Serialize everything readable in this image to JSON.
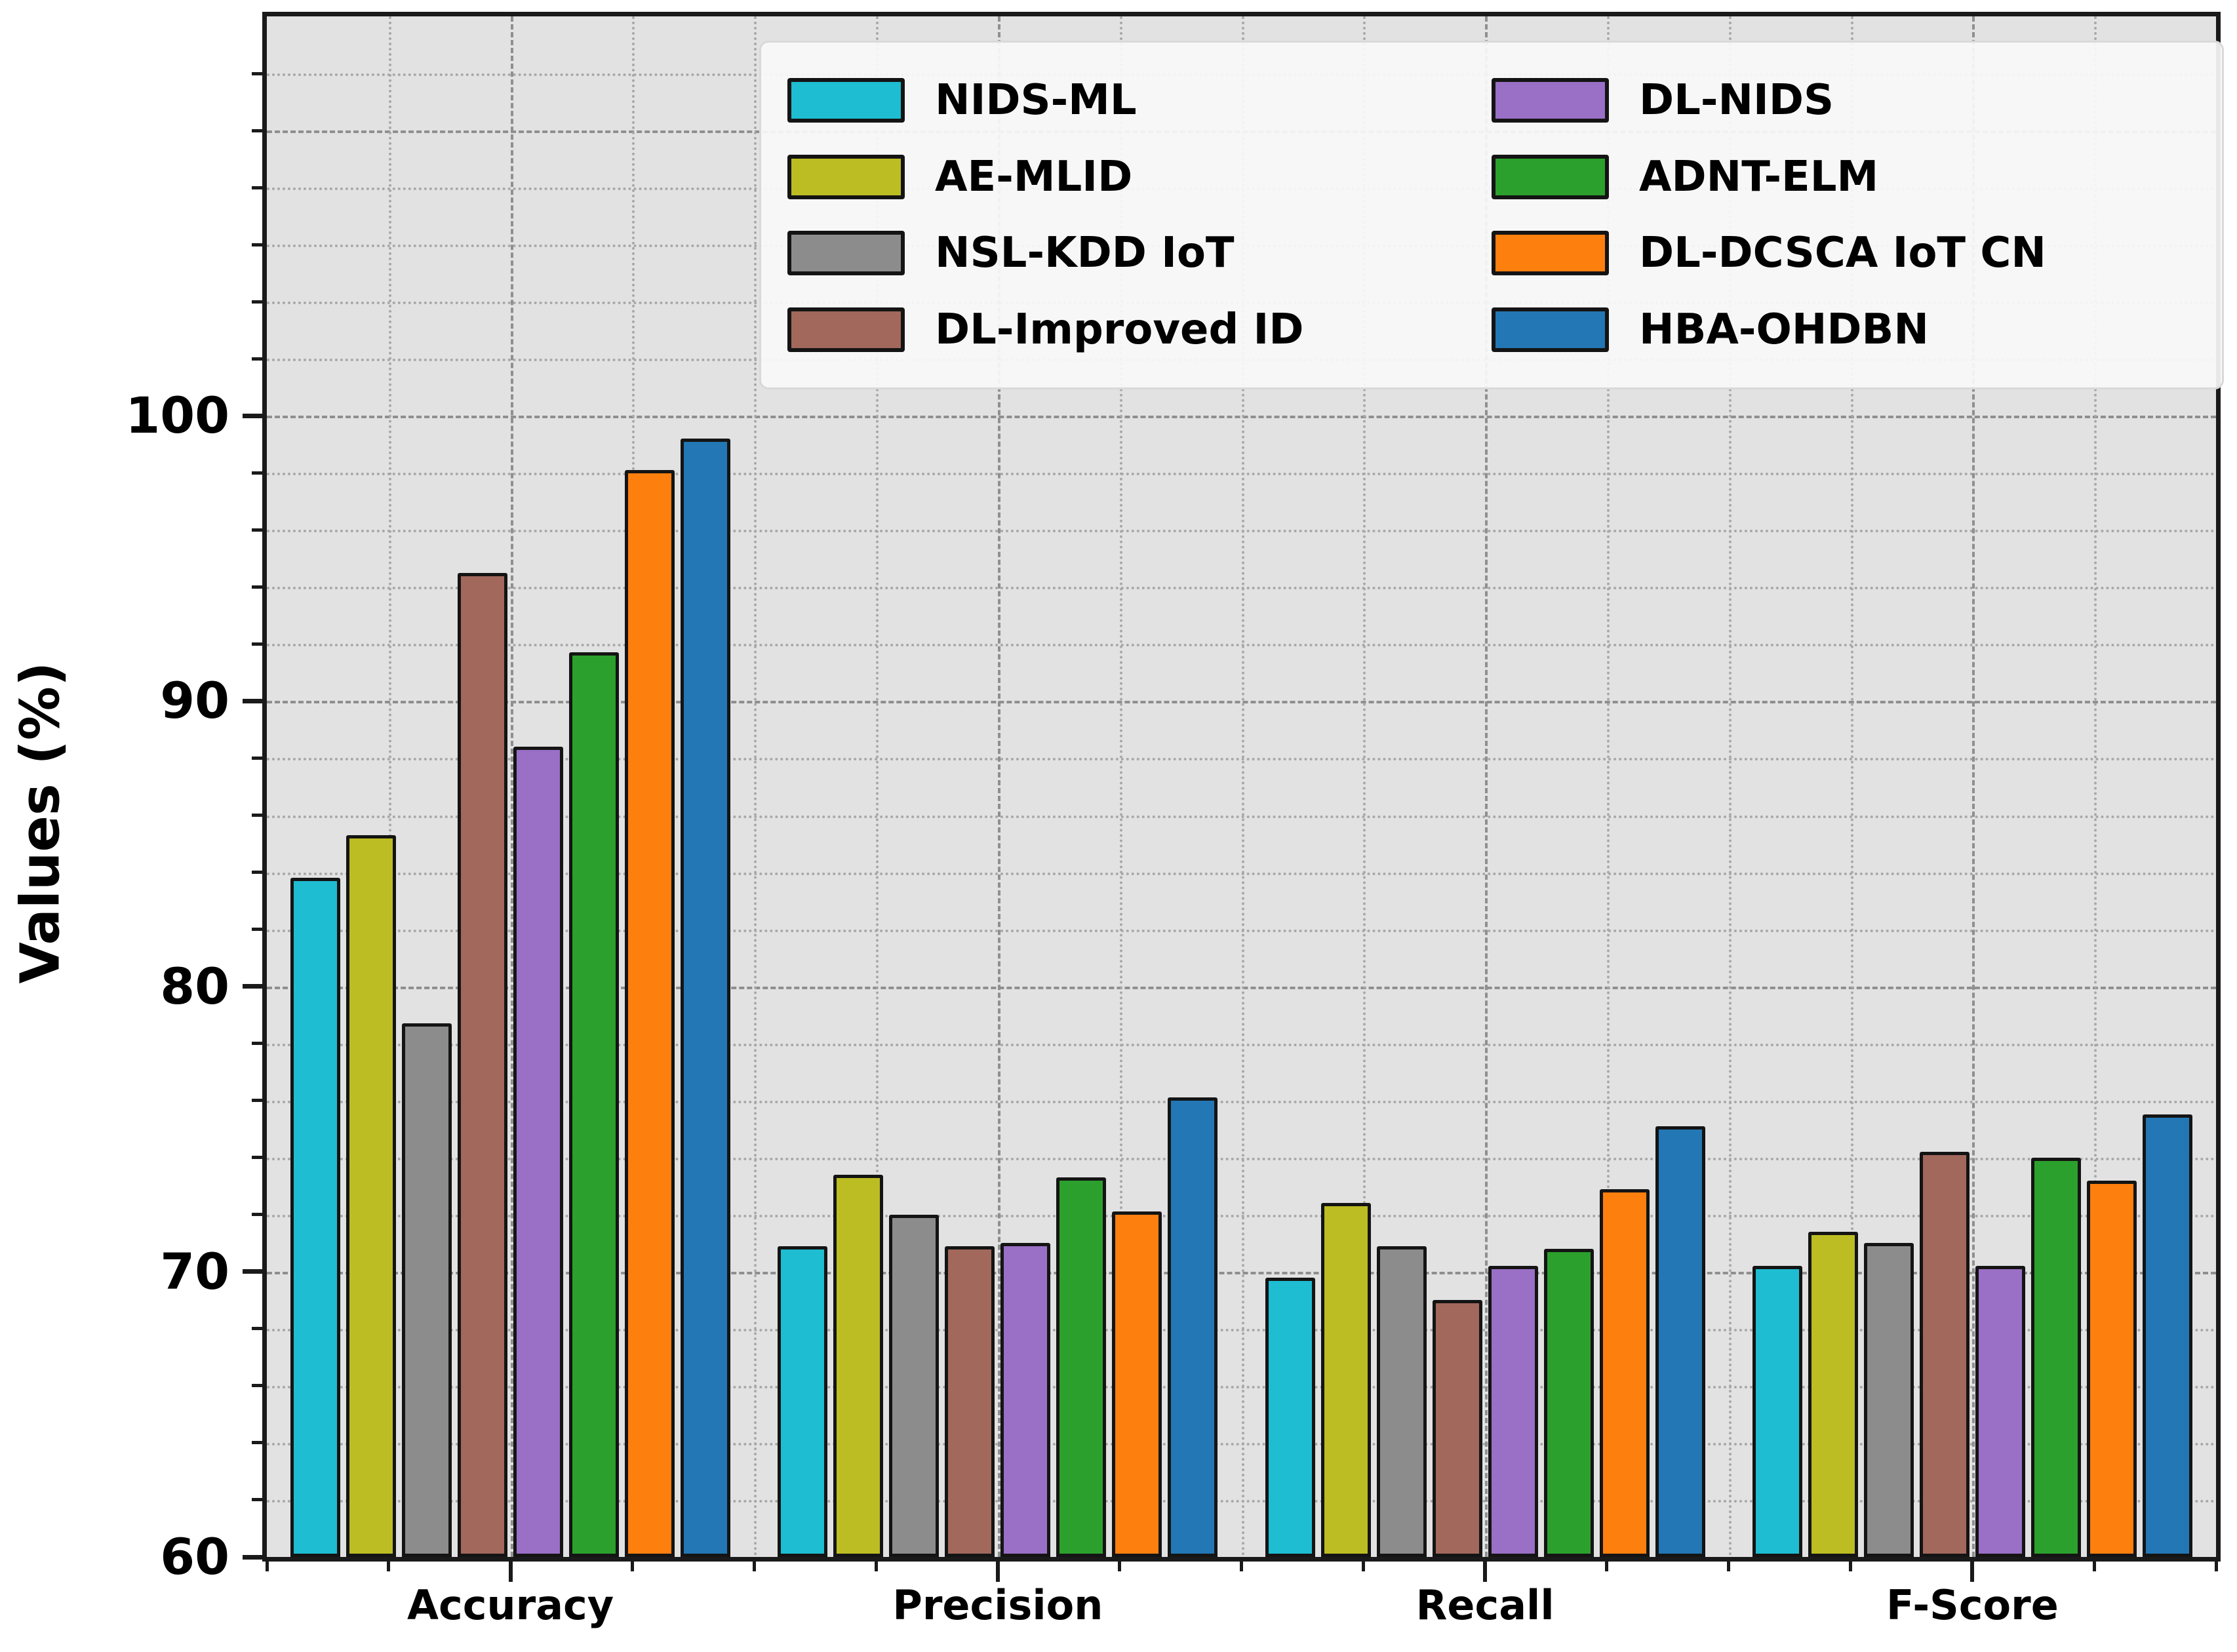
{
  "chart_data": {
    "type": "bar",
    "title": "",
    "xlabel": "",
    "ylabel": "Values (%)",
    "categories": [
      "Accuracy",
      "Precision",
      "Recall",
      "F-Score"
    ],
    "ylim": [
      60,
      114
    ],
    "yticks": [
      60,
      70,
      80,
      90,
      100
    ],
    "minor_y_step": 2,
    "grid": {
      "enabled": true,
      "major_style": "dashed",
      "minor_style": "dotted"
    },
    "legend": {
      "position": "upper-right",
      "columns": 2,
      "order": "column-major"
    },
    "series": [
      {
        "name": "NIDS-ML",
        "color": "#1ebdd1",
        "values": [
          83.8,
          70.9,
          69.8,
          70.2
        ]
      },
      {
        "name": "AE-MLID",
        "color": "#bcbd22",
        "values": [
          85.3,
          73.4,
          72.4,
          71.4
        ]
      },
      {
        "name": "NSL-KDD IoT",
        "color": "#8c8c8c",
        "values": [
          78.7,
          72.0,
          70.9,
          71.0
        ]
      },
      {
        "name": "DL-Improved ID",
        "color": "#a2685c",
        "values": [
          94.5,
          70.9,
          69.0,
          74.2
        ]
      },
      {
        "name": "DL-NIDS",
        "color": "#9a6fc6",
        "values": [
          88.4,
          71.0,
          70.2,
          70.2
        ]
      },
      {
        "name": "ADNT-ELM",
        "color": "#2ca02c",
        "values": [
          91.7,
          73.3,
          70.8,
          74.0
        ]
      },
      {
        "name": "DL-DCSCA IoT CN",
        "color": "#fd7f0e",
        "values": [
          98.1,
          72.1,
          72.9,
          73.2
        ]
      },
      {
        "name": "HBA-OHDBN",
        "color": "#2277b4",
        "values": [
          99.2,
          76.1,
          75.1,
          75.5
        ]
      }
    ]
  },
  "colors": {
    "figure_background": "#ffffff",
    "plot_background": "#e2e2e2",
    "grid_major": "#8f8f8f",
    "grid_minor": "#a8a8a8",
    "bar_edge": "#141414",
    "spine": "#1a1a1a",
    "legend_background": "#f9f9f9",
    "legend_border": "#d9d9d9",
    "text": "#000000"
  }
}
